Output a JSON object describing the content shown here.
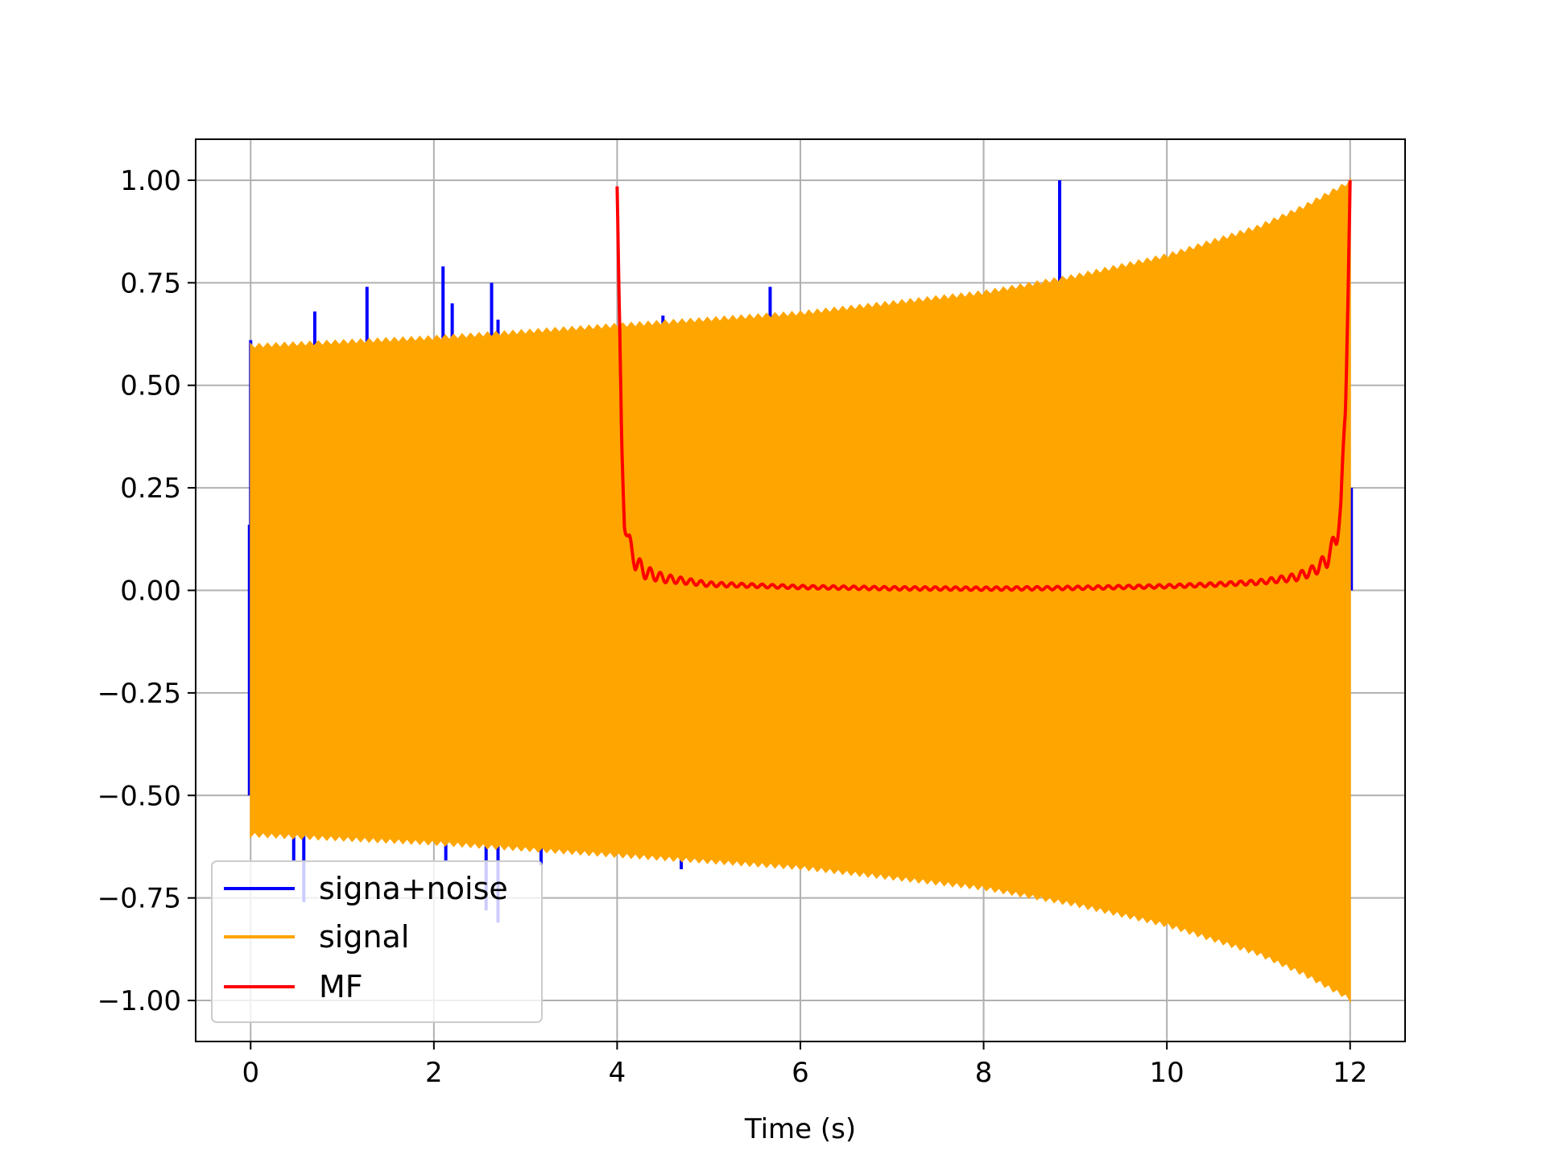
{
  "chart_data": {
    "type": "line",
    "title": "",
    "xlabel": "Time (s)",
    "ylabel": "",
    "xlim": [
      -0.6,
      12.6
    ],
    "ylim": [
      -1.1,
      1.1
    ],
    "xticks": [
      0,
      2,
      4,
      6,
      8,
      10,
      12
    ],
    "xtick_labels": [
      "0",
      "2",
      "4",
      "6",
      "8",
      "10",
      "12"
    ],
    "yticks": [
      1.0,
      0.75,
      0.5,
      0.25,
      0.0,
      -0.25,
      -0.5,
      -0.75,
      -1.0
    ],
    "ytick_labels": [
      "1.00",
      "0.75",
      "0.50",
      "0.25",
      "0.00",
      "−0.25",
      "−0.50",
      "−0.75",
      "−1.00"
    ],
    "grid": true,
    "legend_position": "lower-left",
    "series": [
      {
        "name": "signa+noise",
        "color": "#0000ff",
        "style": "dense oscillation (signal plus noise spikes)",
        "spikes": [
          {
            "x": 0.0,
            "y": 0.61
          },
          {
            "x": 0.47,
            "y": -0.66
          },
          {
            "x": 0.58,
            "y": -0.76
          },
          {
            "x": 0.7,
            "y": 0.68
          },
          {
            "x": 1.27,
            "y": 0.74
          },
          {
            "x": 2.1,
            "y": 0.79
          },
          {
            "x": 2.13,
            "y": -0.66
          },
          {
            "x": 2.2,
            "y": 0.7
          },
          {
            "x": 2.57,
            "y": -0.78
          },
          {
            "x": 2.63,
            "y": 0.75
          },
          {
            "x": 2.7,
            "y": -0.81
          },
          {
            "x": 2.7,
            "y": 0.66
          },
          {
            "x": 3.17,
            "y": -0.67
          },
          {
            "x": 4.5,
            "y": 0.67
          },
          {
            "x": 4.7,
            "y": -0.68
          },
          {
            "x": 5.67,
            "y": 0.74
          },
          {
            "x": 8.83,
            "y": 1.0
          }
        ]
      },
      {
        "name": "signal",
        "color": "#ffa500",
        "style": "chirp with growing amplitude",
        "x_range": [
          0,
          12
        ],
        "envelope": [
          {
            "x": 0,
            "y": 0.6
          },
          {
            "x": 2,
            "y": 0.62
          },
          {
            "x": 4,
            "y": 0.65
          },
          {
            "x": 6,
            "y": 0.68
          },
          {
            "x": 8,
            "y": 0.73
          },
          {
            "x": 9,
            "y": 0.77
          },
          {
            "x": 10,
            "y": 0.82
          },
          {
            "x": 11,
            "y": 0.89
          },
          {
            "x": 11.5,
            "y": 0.94
          },
          {
            "x": 12,
            "y": 1.0
          }
        ]
      },
      {
        "name": "MF",
        "color": "#ff0000",
        "style": "matched filter output",
        "points": [
          {
            "x": 4.0,
            "y": 0.985
          },
          {
            "x": 4.02,
            "y": 0.7
          },
          {
            "x": 4.05,
            "y": 0.35
          },
          {
            "x": 4.08,
            "y": 0.18
          },
          {
            "x": 4.12,
            "y": 0.12
          },
          {
            "x": 4.2,
            "y": 0.07
          },
          {
            "x": 4.3,
            "y": 0.045
          },
          {
            "x": 4.5,
            "y": 0.03
          },
          {
            "x": 5.0,
            "y": 0.015
          },
          {
            "x": 6.0,
            "y": 0.008
          },
          {
            "x": 7.0,
            "y": 0.005
          },
          {
            "x": 8.0,
            "y": 0.004
          },
          {
            "x": 9.0,
            "y": 0.006
          },
          {
            "x": 10.0,
            "y": 0.01
          },
          {
            "x": 10.5,
            "y": 0.014
          },
          {
            "x": 11.0,
            "y": 0.02
          },
          {
            "x": 11.4,
            "y": 0.032
          },
          {
            "x": 11.6,
            "y": 0.048
          },
          {
            "x": 11.75,
            "y": 0.075
          },
          {
            "x": 11.85,
            "y": 0.13
          },
          {
            "x": 11.9,
            "y": 0.2
          },
          {
            "x": 11.95,
            "y": 0.45
          },
          {
            "x": 12.0,
            "y": 1.0
          }
        ]
      }
    ]
  }
}
